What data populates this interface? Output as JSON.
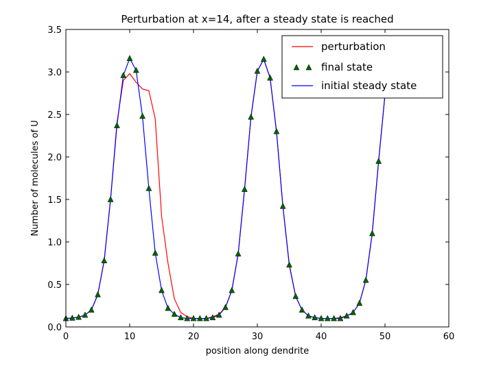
{
  "chart_data": {
    "type": "line",
    "title": "Perturbation at x=14, after a steady state is reached",
    "xlabel": "position along dendrite",
    "ylabel": "Number of molecules of U",
    "xlim": [
      0,
      60
    ],
    "ylim": [
      0,
      3.5
    ],
    "xticks": [
      "0",
      "10",
      "20",
      "30",
      "40",
      "50",
      "60"
    ],
    "yticks": [
      "0.0",
      "0.5",
      "1.0",
      "1.5",
      "2.0",
      "2.5",
      "3.0",
      "3.5"
    ],
    "grid": false,
    "legend_position": "top-right",
    "x": [
      0,
      1,
      2,
      3,
      4,
      5,
      6,
      7,
      8,
      9,
      10,
      11,
      12,
      13,
      14,
      15,
      16,
      17,
      18,
      19,
      20,
      21,
      22,
      23,
      24,
      25,
      26,
      27,
      28,
      29,
      30,
      31,
      32,
      33,
      34,
      35,
      36,
      37,
      38,
      39,
      40,
      41,
      42,
      43,
      44,
      45,
      46,
      47,
      48,
      49,
      50
    ],
    "series": [
      {
        "name": "perturbation",
        "style": "line",
        "color": "#ff0000",
        "values": [
          0.1,
          0.105,
          0.115,
          0.14,
          0.2,
          0.38,
          0.78,
          1.5,
          2.4,
          2.9,
          2.98,
          2.88,
          2.8,
          2.78,
          2.45,
          1.3,
          0.75,
          0.33,
          0.17,
          0.12,
          0.1,
          0.1,
          0.1,
          0.12,
          0.15,
          0.23,
          0.43,
          0.86,
          1.62,
          2.47,
          3.01,
          3.15,
          2.93,
          2.3,
          1.42,
          0.74,
          0.36,
          0.2,
          0.13,
          0.11,
          0.1,
          0.1,
          0.1,
          0.11,
          0.13,
          0.17,
          0.28,
          0.55,
          1.1,
          1.95,
          2.73
        ]
      },
      {
        "name": "final state",
        "style": "markers",
        "color": "#006400",
        "values": [
          0.1,
          0.105,
          0.115,
          0.14,
          0.2,
          0.38,
          0.78,
          1.5,
          2.37,
          2.96,
          3.16,
          3.02,
          2.48,
          1.63,
          0.87,
          0.43,
          0.22,
          0.15,
          0.11,
          0.1,
          0.1,
          0.1,
          0.1,
          0.11,
          0.14,
          0.23,
          0.43,
          0.86,
          1.62,
          2.47,
          3.01,
          3.15,
          2.93,
          2.3,
          1.42,
          0.73,
          0.36,
          0.2,
          0.13,
          0.11,
          0.1,
          0.1,
          0.1,
          0.1,
          0.13,
          0.17,
          0.28,
          0.55,
          1.1,
          1.95,
          2.73
        ]
      },
      {
        "name": "initial steady state",
        "style": "line",
        "color": "#0000ff",
        "values": [
          0.1,
          0.105,
          0.115,
          0.14,
          0.2,
          0.38,
          0.78,
          1.5,
          2.37,
          2.96,
          3.16,
          3.02,
          2.48,
          1.63,
          0.87,
          0.43,
          0.22,
          0.15,
          0.11,
          0.1,
          0.1,
          0.1,
          0.1,
          0.11,
          0.14,
          0.23,
          0.43,
          0.86,
          1.62,
          2.47,
          3.01,
          3.15,
          2.93,
          2.3,
          1.42,
          0.73,
          0.36,
          0.2,
          0.13,
          0.11,
          0.1,
          0.1,
          0.1,
          0.1,
          0.13,
          0.17,
          0.28,
          0.55,
          1.1,
          1.95,
          2.73
        ]
      }
    ]
  }
}
